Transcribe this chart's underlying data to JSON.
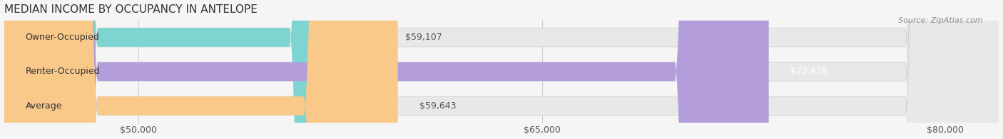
{
  "title": "MEDIAN INCOME BY OCCUPANCY IN ANTELOPE",
  "source": "Source: ZipAtlas.com",
  "categories": [
    "Owner-Occupied",
    "Renter-Occupied",
    "Average"
  ],
  "values": [
    59107,
    73438,
    59643
  ],
  "labels": [
    "$59,107",
    "$73,438",
    "$59,643"
  ],
  "bar_colors": [
    "#7dd4d0",
    "#b39ddb",
    "#f9c98a"
  ],
  "label_colors": [
    "#555555",
    "#ffffff",
    "#555555"
  ],
  "xlim_min": 45000,
  "xlim_max": 82000,
  "xticks": [
    50000,
    65000,
    80000
  ],
  "xtick_labels": [
    "$50,000",
    "$65,000",
    "$80,000"
  ],
  "background_color": "#f5f5f5",
  "bar_background_color": "#e8e8e8",
  "title_fontsize": 11,
  "tick_fontsize": 9,
  "bar_label_fontsize": 9,
  "category_fontsize": 9
}
